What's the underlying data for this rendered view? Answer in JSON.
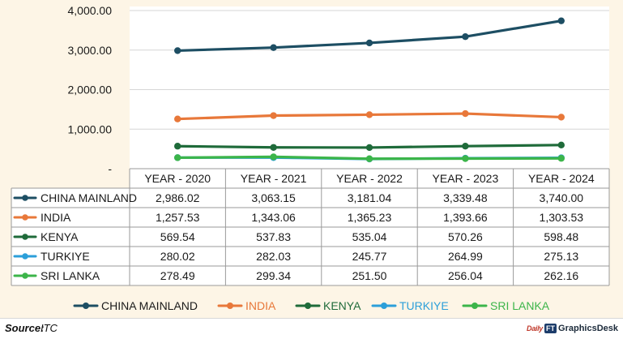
{
  "chart_data": {
    "type": "line",
    "categories": [
      "YEAR - 2020",
      "YEAR - 2021",
      "YEAR - 2022",
      "YEAR - 2023",
      "YEAR - 2024"
    ],
    "y_ticks": [
      "4,000.00",
      "3,000.00",
      "2,000.00",
      "1,000.00",
      "-"
    ],
    "y_tick_values": [
      4000,
      3000,
      2000,
      1000,
      0
    ],
    "ylim": [
      0,
      4000
    ],
    "grid": true,
    "legend_position": "bottom",
    "series": [
      {
        "name": "CHINA MAINLAND",
        "color": "#1d4e63",
        "values": [
          2986.02,
          3063.15,
          3181.04,
          3339.48,
          3740.0
        ],
        "labels": [
          "2,986.02",
          "3,063.15",
          "3,181.04",
          "3,339.48",
          "3,740.00"
        ]
      },
      {
        "name": "INDIA",
        "color": "#e8783a",
        "values": [
          1257.53,
          1343.06,
          1365.23,
          1393.66,
          1303.53
        ],
        "labels": [
          "1,257.53",
          "1,343.06",
          "1,365.23",
          "1,393.66",
          "1,303.53"
        ]
      },
      {
        "name": "KENYA",
        "color": "#1f6b3a",
        "values": [
          569.54,
          537.83,
          535.04,
          570.26,
          598.48
        ],
        "labels": [
          "569.54",
          "537.83",
          "535.04",
          "570.26",
          "598.48"
        ]
      },
      {
        "name": "TURKIYE",
        "color": "#2c9fd9",
        "values": [
          280.02,
          282.03,
          245.77,
          264.99,
          275.13
        ],
        "labels": [
          "280.02",
          "282.03",
          "245.77",
          "264.99",
          "275.13"
        ]
      },
      {
        "name": "SRI LANKA",
        "color": "#3cb54a",
        "values": [
          278.49,
          299.34,
          251.5,
          256.04,
          262.16
        ],
        "labels": [
          "278.49",
          "299.34",
          "251.50",
          "256.04",
          "262.16"
        ]
      }
    ]
  },
  "footer": {
    "source_label": "Source:",
    "source_value": "ITC",
    "brand_mark": "Daily",
    "brand_ft": "FT",
    "brand_desk": "GraphicsDesk"
  }
}
